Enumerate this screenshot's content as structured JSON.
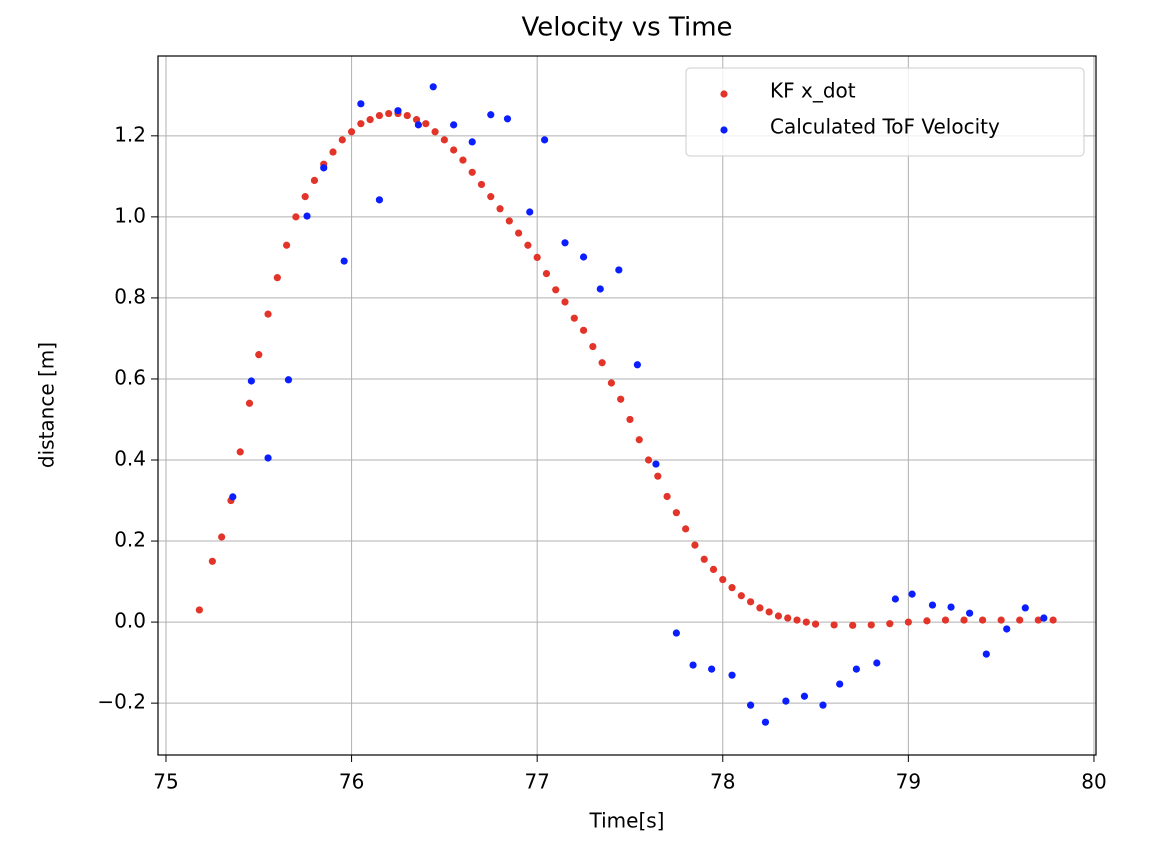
{
  "chart_data": {
    "type": "scatter",
    "title": "Velocity vs Time",
    "x_label": "Time[s]",
    "y_label": "distance [m]",
    "xlim": [
      74.957,
      80.011
    ],
    "ylim": [
      -0.328,
      1.397
    ],
    "xticks": [
      75,
      76,
      77,
      78,
      79,
      80
    ],
    "yticks": [
      {
        "value": -0.2,
        "label": "−0.2"
      },
      {
        "value": 0,
        "label": "0.0"
      },
      0.2,
      0.4,
      0.6,
      0.8,
      {
        "value": 1,
        "label": "1.0"
      },
      1.2
    ],
    "grid": true,
    "legend": "upper right",
    "series": [
      {
        "name": "KF x_dot",
        "color": "#e3342a",
        "x": [
          75.18,
          75.25,
          75.3,
          75.35,
          75.4,
          75.45,
          75.5,
          75.55,
          75.6,
          75.65,
          75.7,
          75.75,
          75.8,
          75.85,
          75.9,
          75.95,
          76.0,
          76.05,
          76.1,
          76.15,
          76.2,
          76.25,
          76.3,
          76.35,
          76.4,
          76.45,
          76.5,
          76.55,
          76.6,
          76.65,
          76.7,
          76.75,
          76.8,
          76.85,
          76.9,
          76.95,
          77.0,
          77.05,
          77.1,
          77.15,
          77.2,
          77.25,
          77.3,
          77.35,
          77.4,
          77.45,
          77.5,
          77.55,
          77.6,
          77.65,
          77.7,
          77.75,
          77.8,
          77.85,
          77.9,
          77.95,
          78.0,
          78.05,
          78.1,
          78.15,
          78.2,
          78.25,
          78.3,
          78.35,
          78.4,
          78.45,
          78.5,
          78.6,
          78.7,
          78.8,
          78.9,
          79.0,
          79.1,
          79.2,
          79.3,
          79.4,
          79.5,
          79.6,
          79.7,
          79.78
        ],
        "values": [
          0.03,
          0.15,
          0.21,
          0.3,
          0.42,
          0.54,
          0.66,
          0.76,
          0.85,
          0.93,
          1.0,
          1.05,
          1.09,
          1.13,
          1.16,
          1.19,
          1.21,
          1.23,
          1.24,
          1.25,
          1.255,
          1.255,
          1.25,
          1.24,
          1.23,
          1.21,
          1.19,
          1.165,
          1.14,
          1.11,
          1.08,
          1.05,
          1.02,
          0.99,
          0.96,
          0.93,
          0.9,
          0.86,
          0.82,
          0.79,
          0.75,
          0.72,
          0.68,
          0.64,
          0.59,
          0.55,
          0.5,
          0.45,
          0.4,
          0.36,
          0.31,
          0.27,
          0.23,
          0.19,
          0.155,
          0.13,
          0.105,
          0.085,
          0.065,
          0.05,
          0.035,
          0.025,
          0.015,
          0.01,
          0.005,
          0.0,
          -0.005,
          -0.007,
          -0.008,
          -0.007,
          -0.004,
          0.0,
          0.003,
          0.005,
          0.005,
          0.005,
          0.005,
          0.005,
          0.005,
          0.005
        ]
      },
      {
        "name": "Calculated ToF Velocity",
        "color": "#0a1eff",
        "x": [
          75.36,
          75.46,
          75.55,
          75.66,
          75.76,
          75.85,
          75.96,
          76.05,
          76.15,
          76.25,
          76.36,
          76.44,
          76.55,
          76.65,
          76.75,
          76.84,
          76.96,
          77.04,
          77.15,
          77.25,
          77.34,
          77.44,
          77.54,
          77.64,
          77.75,
          77.84,
          77.94,
          78.05,
          78.15,
          78.23,
          78.34,
          78.44,
          78.54,
          78.63,
          78.72,
          78.83,
          78.93,
          79.02,
          79.13,
          79.23,
          79.33,
          79.42,
          79.53,
          79.63,
          79.73
        ],
        "values": [
          0.309,
          0.595,
          0.405,
          0.598,
          1.002,
          1.121,
          0.891,
          1.279,
          1.042,
          1.262,
          1.227,
          1.321,
          1.227,
          1.185,
          1.252,
          1.242,
          1.012,
          1.19,
          0.936,
          0.901,
          0.822,
          0.869,
          0.635,
          0.39,
          -0.027,
          -0.106,
          -0.116,
          -0.131,
          -0.205,
          -0.247,
          -0.195,
          -0.183,
          -0.205,
          -0.153,
          -0.116,
          -0.101,
          0.057,
          0.069,
          0.042,
          0.037,
          0.022,
          -0.079,
          -0.017,
          0.035,
          0.01
        ]
      }
    ]
  }
}
